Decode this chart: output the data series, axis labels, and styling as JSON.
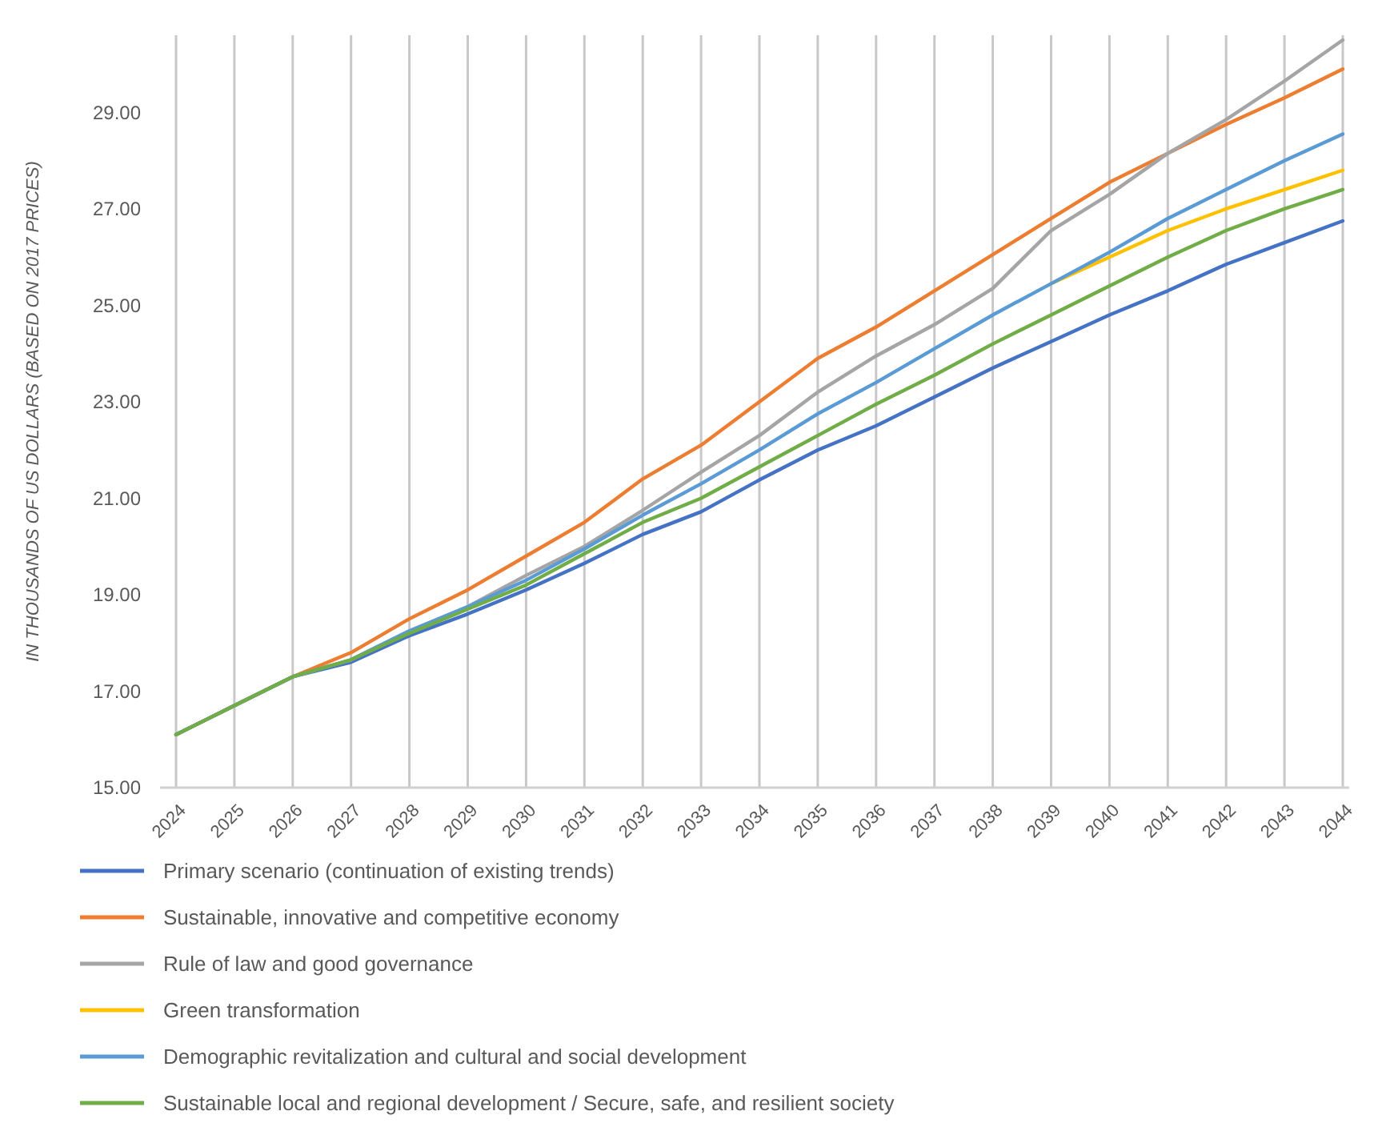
{
  "chart_data": {
    "type": "line",
    "ylabel": "IN THOUSANDS OF US DOLLARS (BASED ON 2017 PRICES)",
    "categories": [
      "2024",
      "2025",
      "2026",
      "2027",
      "2028",
      "2029",
      "2030",
      "2031",
      "2032",
      "2033",
      "2034",
      "2035",
      "2036",
      "2037",
      "2038",
      "2039",
      "2040",
      "2041",
      "2042",
      "2043",
      "2044"
    ],
    "ylim": [
      15,
      30.6
    ],
    "yticks": [
      {
        "value": 15,
        "label": "15.00"
      },
      {
        "value": 17,
        "label": "17.00"
      },
      {
        "value": 19,
        "label": "19.00"
      },
      {
        "value": 21,
        "label": "21.00"
      },
      {
        "value": 23,
        "label": "23.00"
      },
      {
        "value": 25,
        "label": "25.00"
      },
      {
        "value": 27,
        "label": "27.00"
      },
      {
        "value": 29,
        "label": "29.00"
      }
    ],
    "grid": "x",
    "legend": "bottom",
    "line_style": "solid",
    "series": [
      {
        "name": "Primary scenario (continuation of existing trends)",
        "color": "#4472c4",
        "values": [
          16.1,
          16.7,
          17.3,
          17.6,
          18.15,
          18.6,
          19.1,
          19.65,
          20.25,
          20.72,
          21.38,
          22.0,
          22.5,
          23.1,
          23.7,
          24.25,
          24.8,
          25.3,
          25.85,
          26.3,
          26.75
        ]
      },
      {
        "name": "Sustainable, innovative and competitive economy",
        "color": "#ed7d31",
        "values": [
          16.1,
          16.7,
          17.3,
          17.8,
          18.5,
          19.1,
          19.8,
          20.5,
          21.4,
          22.1,
          23.0,
          23.9,
          24.55,
          25.3,
          26.05,
          26.8,
          27.55,
          28.15,
          28.75,
          29.3,
          29.9
        ]
      },
      {
        "name": "Rule of law and good governance",
        "color": "#a5a5a5",
        "values": [
          16.1,
          16.7,
          17.3,
          17.65,
          18.25,
          18.75,
          19.4,
          20.0,
          20.75,
          21.54,
          22.3,
          23.2,
          23.95,
          24.6,
          25.35,
          26.55,
          27.3,
          28.15,
          28.85,
          29.65,
          30.5
        ]
      },
      {
        "name": "Green transformation",
        "color": "#ffc000",
        "values": [
          null,
          null,
          null,
          null,
          null,
          null,
          null,
          null,
          null,
          null,
          null,
          null,
          null,
          null,
          null,
          25.45,
          26.0,
          26.55,
          27.0,
          27.4,
          27.8
        ]
      },
      {
        "name": "Demographic revitalization and cultural and social development",
        "color": "#5b9bd5",
        "values": [
          16.1,
          16.7,
          17.3,
          17.65,
          18.25,
          18.75,
          19.3,
          19.95,
          20.65,
          21.3,
          22.0,
          22.75,
          23.4,
          24.1,
          24.8,
          25.45,
          26.1,
          26.8,
          27.4,
          28.0,
          28.55
        ]
      },
      {
        "name": "Sustainable local and regional development / Secure, safe, and resilient society",
        "color": "#70ad47",
        "values": [
          16.1,
          16.7,
          17.3,
          17.65,
          18.2,
          18.7,
          19.2,
          19.85,
          20.5,
          21.0,
          21.65,
          22.3,
          22.95,
          23.55,
          24.2,
          24.8,
          25.4,
          26.0,
          26.55,
          27.0,
          27.4
        ]
      }
    ]
  }
}
